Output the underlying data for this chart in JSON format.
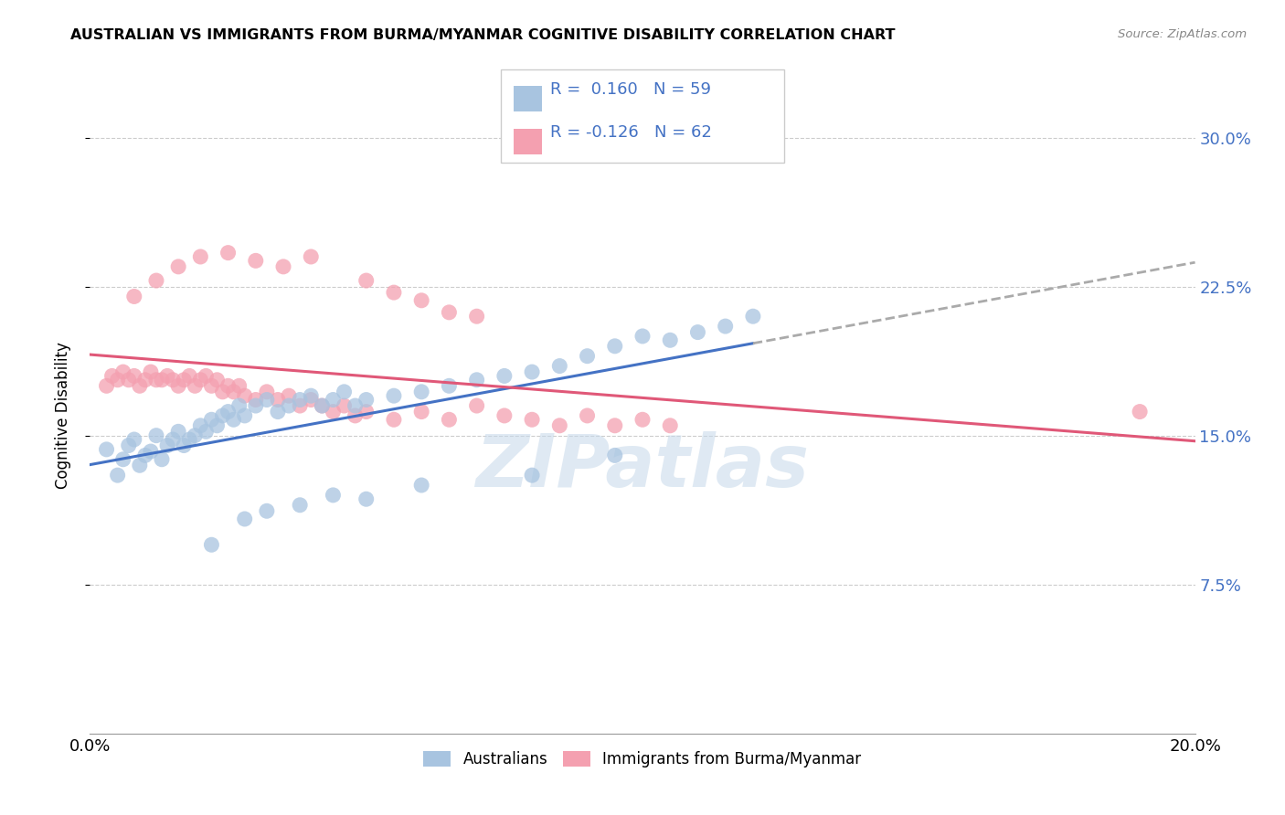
{
  "title": "AUSTRALIAN VS IMMIGRANTS FROM BURMA/MYANMAR COGNITIVE DISABILITY CORRELATION CHART",
  "source": "Source: ZipAtlas.com",
  "ylabel": "Cognitive Disability",
  "xlim": [
    0.0,
    0.2
  ],
  "ylim": [
    0.0,
    0.32
  ],
  "yticks": [
    0.075,
    0.15,
    0.225,
    0.3
  ],
  "ytick_labels": [
    "7.5%",
    "15.0%",
    "22.5%",
    "30.0%"
  ],
  "xticks": [
    0.0,
    0.05,
    0.1,
    0.15,
    0.2
  ],
  "xtick_labels": [
    "0.0%",
    "",
    "",
    "",
    "20.0%"
  ],
  "R_blue": 0.16,
  "N_blue": 59,
  "R_pink": -0.126,
  "N_pink": 62,
  "legend_label_blue": "Australians",
  "legend_label_pink": "Immigrants from Burma/Myanmar",
  "color_blue": "#a8c4e0",
  "color_pink": "#f4a0b0",
  "line_color_blue": "#4472c4",
  "line_color_pink": "#e05878",
  "line_color_dash": "#aaaaaa",
  "watermark": "ZIPatlas",
  "blue_x": [
    0.003,
    0.005,
    0.006,
    0.007,
    0.008,
    0.009,
    0.01,
    0.011,
    0.012,
    0.013,
    0.014,
    0.015,
    0.016,
    0.017,
    0.018,
    0.019,
    0.02,
    0.021,
    0.022,
    0.023,
    0.024,
    0.025,
    0.026,
    0.027,
    0.028,
    0.03,
    0.032,
    0.034,
    0.036,
    0.038,
    0.04,
    0.042,
    0.044,
    0.046,
    0.048,
    0.05,
    0.055,
    0.06,
    0.065,
    0.07,
    0.075,
    0.08,
    0.085,
    0.09,
    0.095,
    0.1,
    0.105,
    0.11,
    0.115,
    0.12,
    0.022,
    0.028,
    0.032,
    0.038,
    0.044,
    0.05,
    0.06,
    0.08,
    0.095
  ],
  "blue_y": [
    0.143,
    0.13,
    0.138,
    0.145,
    0.148,
    0.135,
    0.14,
    0.142,
    0.15,
    0.138,
    0.145,
    0.148,
    0.152,
    0.145,
    0.148,
    0.15,
    0.155,
    0.152,
    0.158,
    0.155,
    0.16,
    0.162,
    0.158,
    0.165,
    0.16,
    0.165,
    0.168,
    0.162,
    0.165,
    0.168,
    0.17,
    0.165,
    0.168,
    0.172,
    0.165,
    0.168,
    0.17,
    0.172,
    0.175,
    0.178,
    0.18,
    0.182,
    0.185,
    0.19,
    0.195,
    0.2,
    0.198,
    0.202,
    0.205,
    0.21,
    0.095,
    0.108,
    0.112,
    0.115,
    0.12,
    0.118,
    0.125,
    0.13,
    0.14
  ],
  "pink_x": [
    0.003,
    0.004,
    0.005,
    0.006,
    0.007,
    0.008,
    0.009,
    0.01,
    0.011,
    0.012,
    0.013,
    0.014,
    0.015,
    0.016,
    0.017,
    0.018,
    0.019,
    0.02,
    0.021,
    0.022,
    0.023,
    0.024,
    0.025,
    0.026,
    0.027,
    0.028,
    0.03,
    0.032,
    0.034,
    0.036,
    0.038,
    0.04,
    0.042,
    0.044,
    0.046,
    0.048,
    0.05,
    0.055,
    0.06,
    0.065,
    0.07,
    0.075,
    0.08,
    0.085,
    0.09,
    0.095,
    0.1,
    0.105,
    0.19,
    0.008,
    0.012,
    0.016,
    0.02,
    0.025,
    0.03,
    0.035,
    0.04,
    0.05,
    0.055,
    0.06,
    0.065,
    0.07
  ],
  "pink_y": [
    0.175,
    0.18,
    0.178,
    0.182,
    0.178,
    0.18,
    0.175,
    0.178,
    0.182,
    0.178,
    0.178,
    0.18,
    0.178,
    0.175,
    0.178,
    0.18,
    0.175,
    0.178,
    0.18,
    0.175,
    0.178,
    0.172,
    0.175,
    0.172,
    0.175,
    0.17,
    0.168,
    0.172,
    0.168,
    0.17,
    0.165,
    0.168,
    0.165,
    0.162,
    0.165,
    0.16,
    0.162,
    0.158,
    0.162,
    0.158,
    0.165,
    0.16,
    0.158,
    0.155,
    0.16,
    0.155,
    0.158,
    0.155,
    0.162,
    0.22,
    0.228,
    0.235,
    0.24,
    0.242,
    0.238,
    0.235,
    0.24,
    0.228,
    0.222,
    0.218,
    0.212,
    0.21
  ]
}
